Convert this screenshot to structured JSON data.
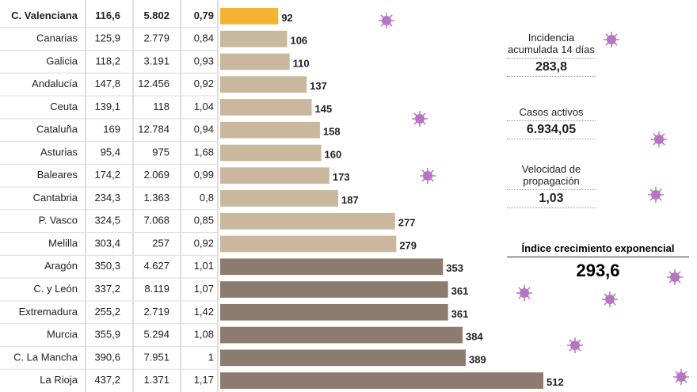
{
  "chart_data": {
    "type": "bar",
    "categories": [
      "C. Valenciana",
      "Canarias",
      "Galicia",
      "Andalucía",
      "Ceuta",
      "Cataluña",
      "Asturias",
      "Baleares",
      "Cantabria",
      "P. Vasco",
      "Melilla",
      "Aragón",
      "C. y León",
      "Extremadura",
      "Murcia",
      "C. La Mancha",
      "La Rioja"
    ],
    "columns": [
      [
        "116,6",
        "125,9",
        "118,2",
        "147,8",
        "139,1",
        "169",
        "95,4",
        "174,2",
        "234,3",
        "324,5",
        "303,4",
        "350,3",
        "337,2",
        "255,2",
        "355,9",
        "390,6",
        "437,2"
      ],
      [
        "5.802",
        "2.779",
        "3.191",
        "12.456",
        "118",
        "12.784",
        "975",
        "2.069",
        "1.363",
        "7.068",
        "257",
        "4.627",
        "8.119",
        "2.719",
        "5.294",
        "7.951",
        "1.371"
      ],
      [
        "0,79",
        "0,84",
        "0,93",
        "0,92",
        "1,04",
        "0,94",
        "1,68",
        "0,99",
        "0,8",
        "0,85",
        "0,92",
        "1,01",
        "1,07",
        "1,42",
        "1,08",
        "1",
        "1,17"
      ]
    ],
    "values": [
      92,
      106,
      110,
      137,
      145,
      158,
      160,
      173,
      187,
      277,
      279,
      353,
      361,
      361,
      384,
      389,
      512
    ],
    "colors": [
      "#f5b335",
      "#c9b89e",
      "#c9b89e",
      "#c9b89e",
      "#c9b89e",
      "#c9b89e",
      "#c9b89e",
      "#c9b89e",
      "#c9b89e",
      "#c9b89e",
      "#c9b89e",
      "#8d7b70",
      "#8d7b70",
      "#8d7b70",
      "#8d7b70",
      "#8d7b70",
      "#8d7b70"
    ]
  },
  "panel": {
    "items": [
      {
        "label": "Incidencia acumulada 14 días",
        "value": "283,8"
      },
      {
        "label": "Casos activos",
        "value": "6.934,05"
      },
      {
        "label": "Velocidad de propagación",
        "value": "1,03"
      }
    ],
    "index": {
      "label": "Índice crecimiento exponencial",
      "value": "293,6"
    }
  }
}
